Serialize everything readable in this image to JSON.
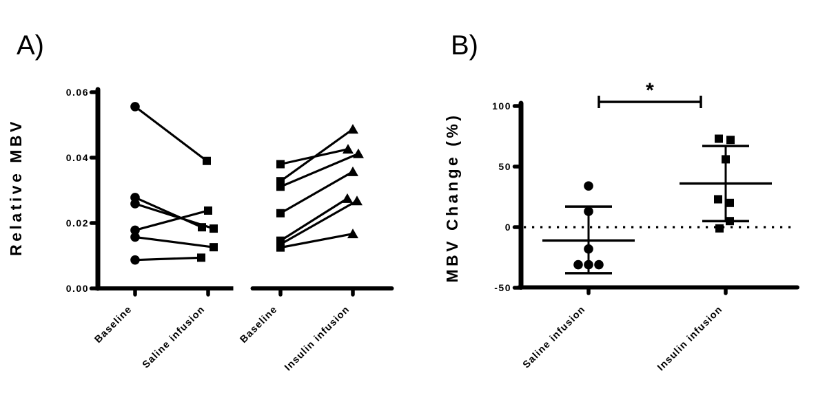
{
  "figure": {
    "background": "#ffffff",
    "ink": "#000000",
    "panels": [
      {
        "label": "A)"
      },
      {
        "label": "B)"
      }
    ]
  },
  "chart_data": [
    {
      "type": "line",
      "subtype": "paired-individual-lines",
      "panel": "A",
      "title": "",
      "xlabel": "",
      "ylabel": "Relative MBV",
      "ylim": [
        0,
        0.06
      ],
      "yticks": [
        "0.00",
        "0.02",
        "0.04",
        "0.06"
      ],
      "ytick_values": [
        0,
        0.02,
        0.04,
        0.06
      ],
      "grid": false,
      "subpanels": [
        {
          "categories": [
            "Baseline",
            "Saline infusion"
          ],
          "markers": [
            "circle",
            "square"
          ],
          "pairs": [
            {
              "baseline": 0.0556,
              "infusion": 0.039
            },
            {
              "baseline": 0.0278,
              "infusion": 0.0187
            },
            {
              "baseline": 0.0259,
              "infusion": 0.0183
            },
            {
              "baseline": 0.0178,
              "infusion": 0.0238
            },
            {
              "baseline": 0.0157,
              "infusion": 0.0126
            },
            {
              "baseline": 0.0087,
              "infusion": 0.0094
            }
          ]
        },
        {
          "categories": [
            "Baseline",
            "Insulin infusion"
          ],
          "markers": [
            "square",
            "triangle"
          ],
          "pairs": [
            {
              "baseline": 0.038,
              "infusion": 0.0426
            },
            {
              "baseline": 0.0328,
              "infusion": 0.0487
            },
            {
              "baseline": 0.0311,
              "infusion": 0.0412
            },
            {
              "baseline": 0.023,
              "infusion": 0.0357
            },
            {
              "baseline": 0.0146,
              "infusion": 0.0275
            },
            {
              "baseline": 0.0135,
              "infusion": 0.0268
            },
            {
              "baseline": 0.0125,
              "infusion": 0.0167
            }
          ]
        }
      ]
    },
    {
      "type": "scatter",
      "subtype": "column-scatter-mean-sd",
      "panel": "B",
      "title": "",
      "xlabel": "",
      "ylabel": "MBV Change (%)",
      "ylim": [
        -50,
        100
      ],
      "yticks": [
        "100",
        "50",
        "0",
        "-50"
      ],
      "ytick_values": [
        100,
        50,
        0,
        -50
      ],
      "grid": false,
      "zero_reference_line": "dotted",
      "groups": [
        {
          "category": "Saline infusion",
          "marker": "circle",
          "values": [
            34,
            13,
            -18,
            -31,
            -31,
            -31
          ],
          "mean": -11,
          "error_top": 17,
          "error_bottom": -38
        },
        {
          "category": "Insulin infusion",
          "marker": "square",
          "values": [
            73,
            72,
            56,
            23,
            20,
            5,
            -1
          ],
          "mean": 36,
          "error_top": 67,
          "error_bottom": 5
        }
      ],
      "significance": {
        "symbol": "*",
        "compares": [
          "Saline infusion",
          "Insulin infusion"
        ]
      }
    }
  ]
}
